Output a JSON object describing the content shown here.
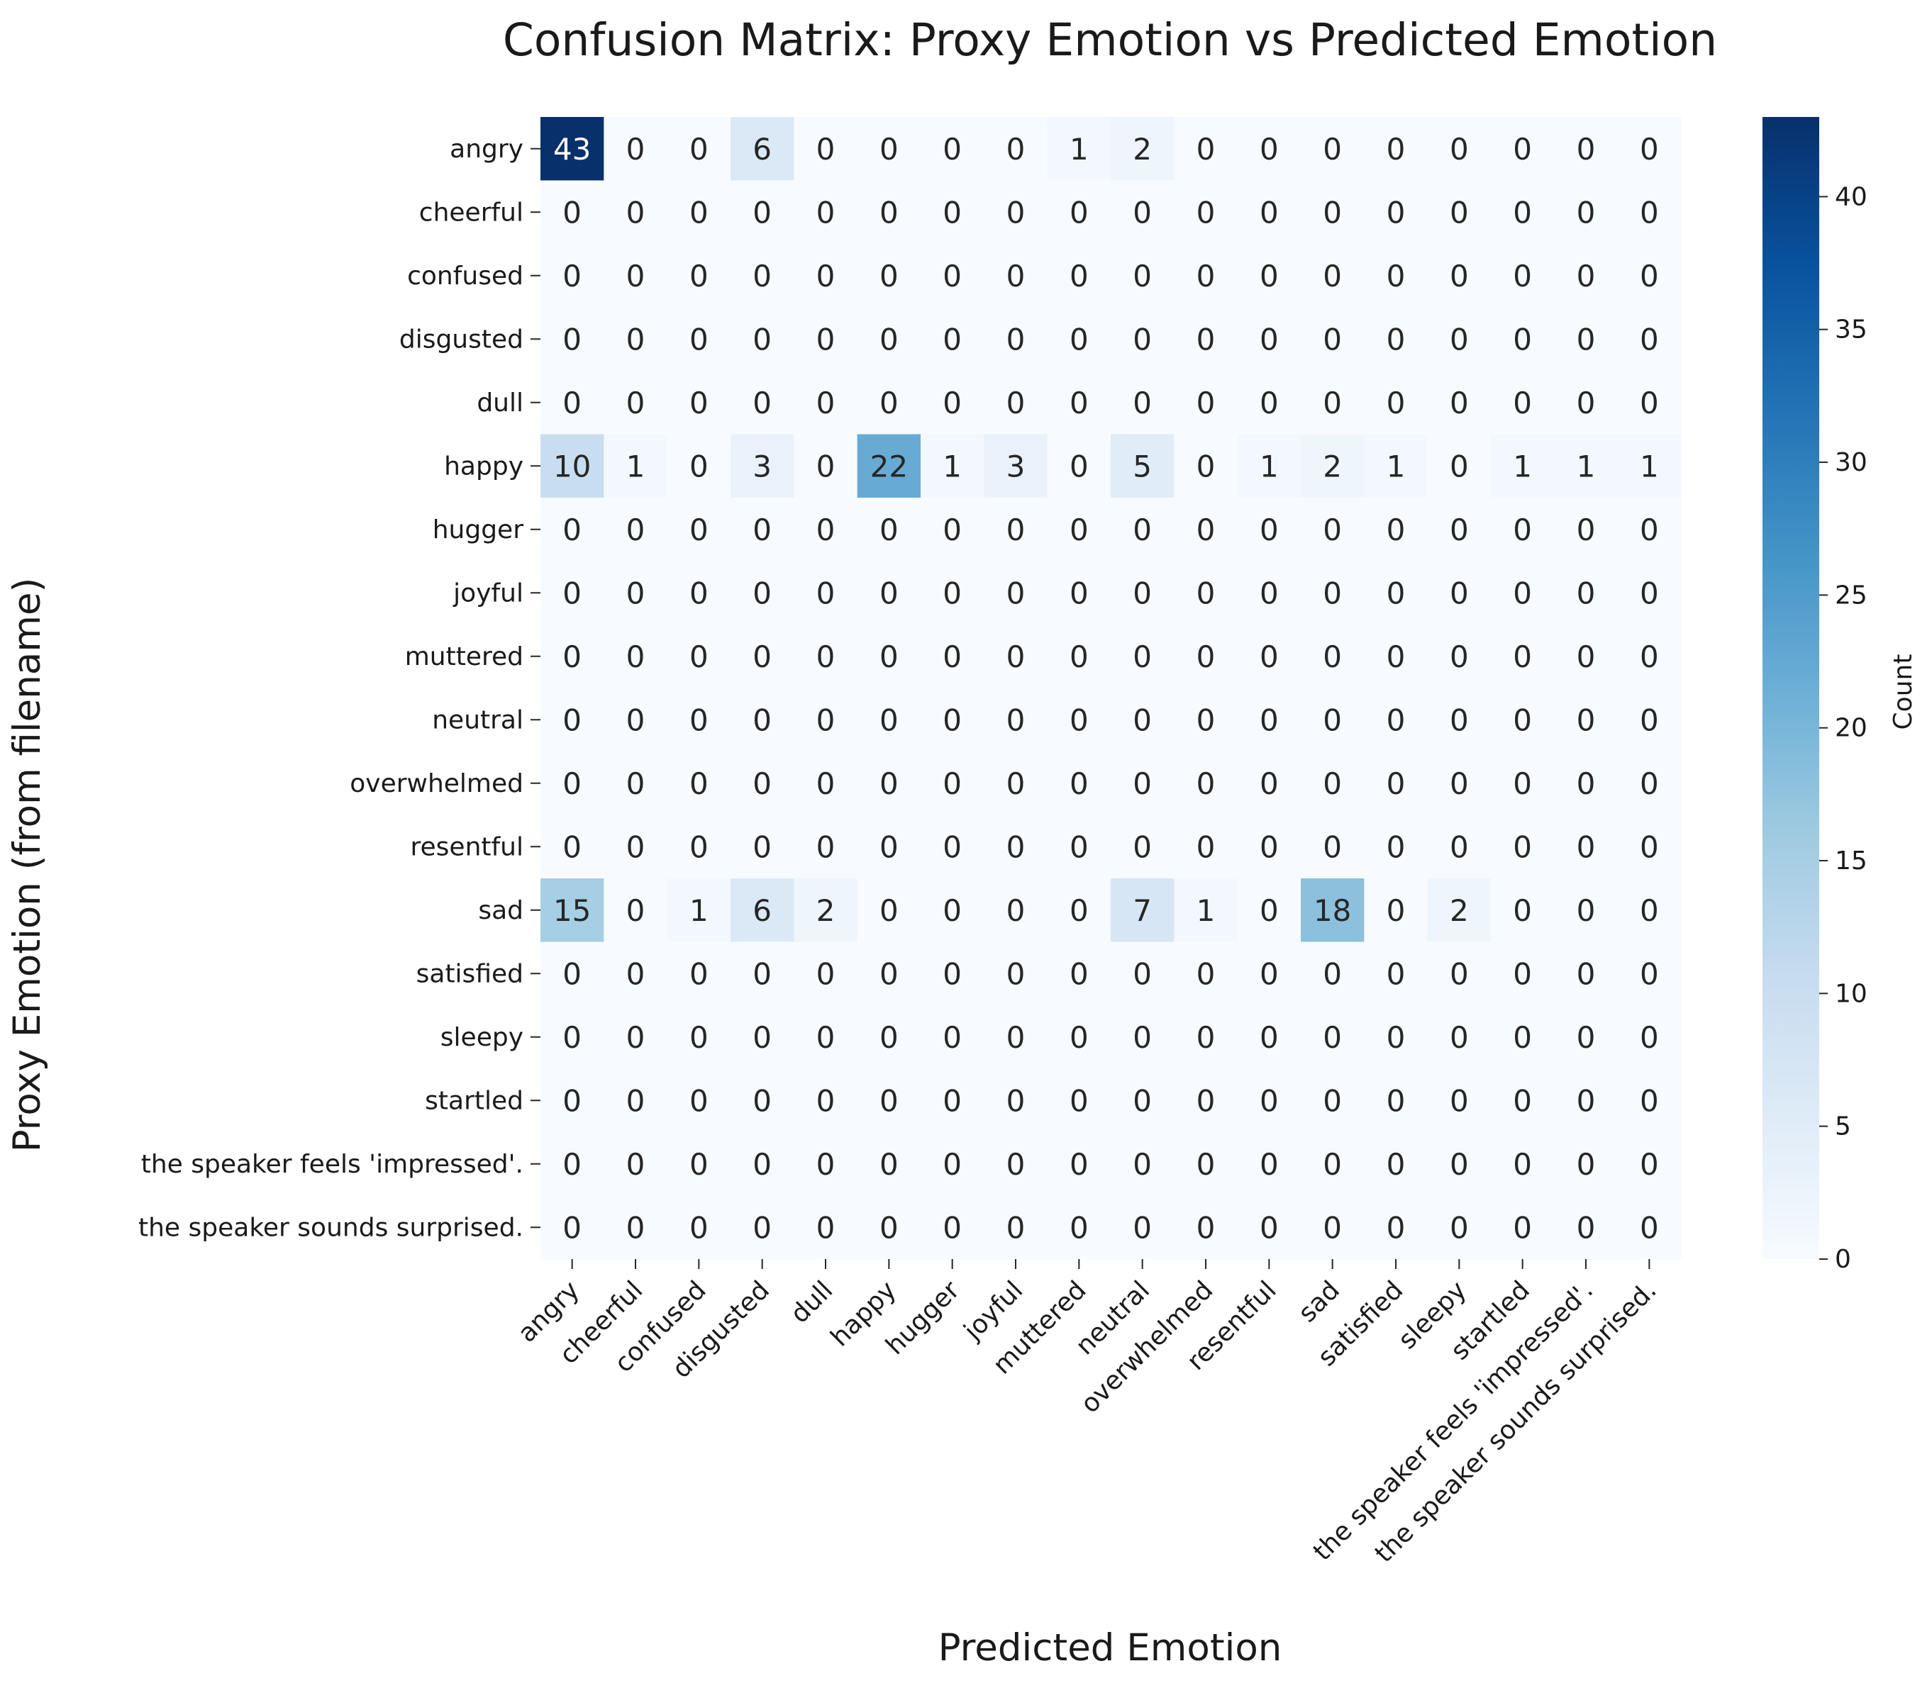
{
  "chart_data": {
    "type": "heatmap",
    "title": "Confusion Matrix: Proxy Emotion vs Predicted Emotion",
    "xlabel": "Predicted Emotion",
    "ylabel": "Proxy Emotion (from filename)",
    "x_categories": [
      "angry",
      "cheerful",
      "confused",
      "disgusted",
      "dull",
      "happy",
      "hugger",
      "joyful",
      "muttered",
      "neutral",
      "overwhelmed",
      "resentful",
      "sad",
      "satisfied",
      "sleepy",
      "startled",
      "the speaker feels 'impressed'.",
      "the speaker sounds surprised."
    ],
    "y_categories": [
      "angry",
      "cheerful",
      "confused",
      "disgusted",
      "dull",
      "happy",
      "hugger",
      "joyful",
      "muttered",
      "neutral",
      "overwhelmed",
      "resentful",
      "sad",
      "satisfied",
      "sleepy",
      "startled",
      "the speaker feels 'impressed'.",
      "the speaker sounds surprised."
    ],
    "values": [
      [
        43,
        0,
        0,
        6,
        0,
        0,
        0,
        0,
        1,
        2,
        0,
        0,
        0,
        0,
        0,
        0,
        0,
        0
      ],
      [
        0,
        0,
        0,
        0,
        0,
        0,
        0,
        0,
        0,
        0,
        0,
        0,
        0,
        0,
        0,
        0,
        0,
        0
      ],
      [
        0,
        0,
        0,
        0,
        0,
        0,
        0,
        0,
        0,
        0,
        0,
        0,
        0,
        0,
        0,
        0,
        0,
        0
      ],
      [
        0,
        0,
        0,
        0,
        0,
        0,
        0,
        0,
        0,
        0,
        0,
        0,
        0,
        0,
        0,
        0,
        0,
        0
      ],
      [
        0,
        0,
        0,
        0,
        0,
        0,
        0,
        0,
        0,
        0,
        0,
        0,
        0,
        0,
        0,
        0,
        0,
        0
      ],
      [
        10,
        1,
        0,
        3,
        0,
        22,
        1,
        3,
        0,
        5,
        0,
        1,
        2,
        1,
        0,
        1,
        1,
        1
      ],
      [
        0,
        0,
        0,
        0,
        0,
        0,
        0,
        0,
        0,
        0,
        0,
        0,
        0,
        0,
        0,
        0,
        0,
        0
      ],
      [
        0,
        0,
        0,
        0,
        0,
        0,
        0,
        0,
        0,
        0,
        0,
        0,
        0,
        0,
        0,
        0,
        0,
        0
      ],
      [
        0,
        0,
        0,
        0,
        0,
        0,
        0,
        0,
        0,
        0,
        0,
        0,
        0,
        0,
        0,
        0,
        0,
        0
      ],
      [
        0,
        0,
        0,
        0,
        0,
        0,
        0,
        0,
        0,
        0,
        0,
        0,
        0,
        0,
        0,
        0,
        0,
        0
      ],
      [
        0,
        0,
        0,
        0,
        0,
        0,
        0,
        0,
        0,
        0,
        0,
        0,
        0,
        0,
        0,
        0,
        0,
        0
      ],
      [
        0,
        0,
        0,
        0,
        0,
        0,
        0,
        0,
        0,
        0,
        0,
        0,
        0,
        0,
        0,
        0,
        0,
        0
      ],
      [
        15,
        0,
        1,
        6,
        2,
        0,
        0,
        0,
        0,
        7,
        1,
        0,
        18,
        0,
        2,
        0,
        0,
        0
      ],
      [
        0,
        0,
        0,
        0,
        0,
        0,
        0,
        0,
        0,
        0,
        0,
        0,
        0,
        0,
        0,
        0,
        0,
        0
      ],
      [
        0,
        0,
        0,
        0,
        0,
        0,
        0,
        0,
        0,
        0,
        0,
        0,
        0,
        0,
        0,
        0,
        0,
        0
      ],
      [
        0,
        0,
        0,
        0,
        0,
        0,
        0,
        0,
        0,
        0,
        0,
        0,
        0,
        0,
        0,
        0,
        0,
        0
      ],
      [
        0,
        0,
        0,
        0,
        0,
        0,
        0,
        0,
        0,
        0,
        0,
        0,
        0,
        0,
        0,
        0,
        0,
        0
      ],
      [
        0,
        0,
        0,
        0,
        0,
        0,
        0,
        0,
        0,
        0,
        0,
        0,
        0,
        0,
        0,
        0,
        0,
        0
      ]
    ],
    "colorbar": {
      "label": "Count",
      "range": [
        0,
        43
      ],
      "ticks": [
        0,
        5,
        10,
        15,
        20,
        25,
        30,
        35,
        40
      ],
      "colormap": "Blues"
    },
    "grid": false,
    "legend": "colorbar-right"
  }
}
